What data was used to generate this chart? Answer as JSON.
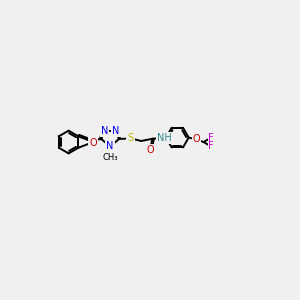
{
  "bg": "#f0f0f0",
  "bond_lw": 1.4,
  "colors": {
    "C": "#000000",
    "N": "#0000ee",
    "O": "#cc0000",
    "S": "#bbbb00",
    "F": "#cc00cc",
    "H": "#338888"
  },
  "fs": 7.0,
  "fs_small": 6.0
}
